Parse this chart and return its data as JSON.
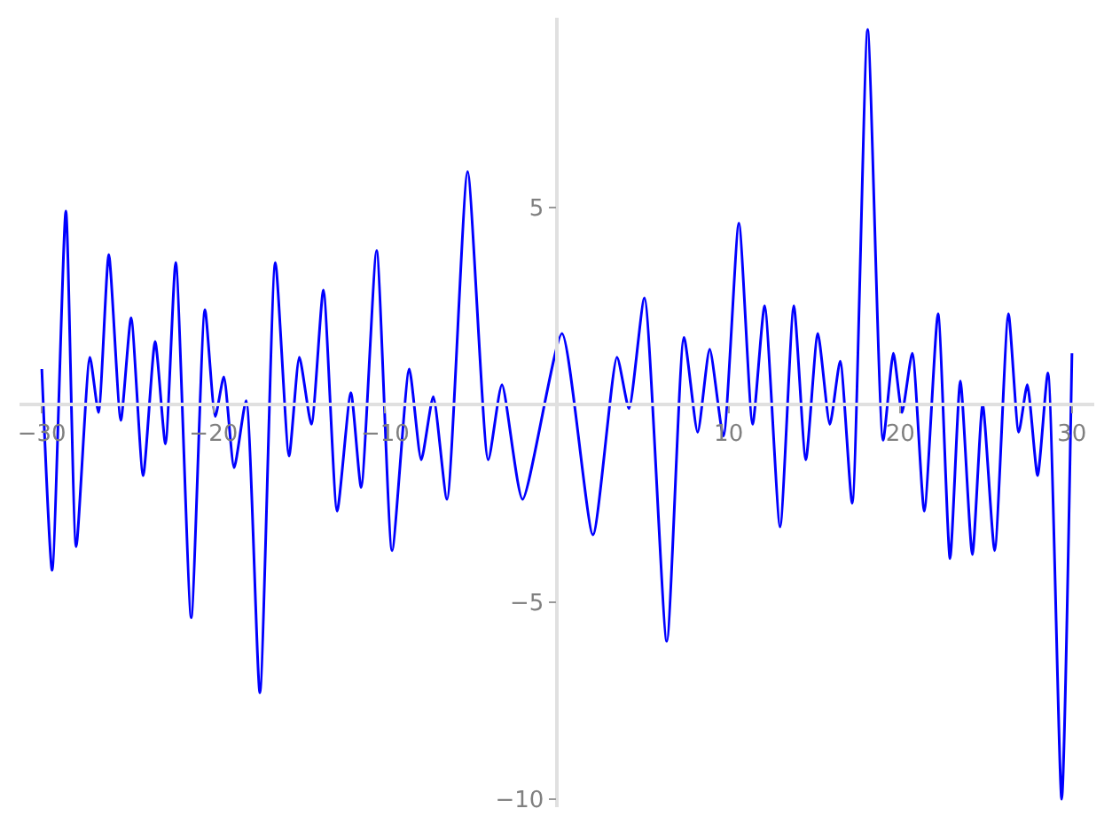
{
  "chart_data": {
    "type": "line",
    "x": [
      -30,
      -29.4,
      -28.6,
      -28.0,
      -27.2,
      -26.7,
      -26.1,
      -25.4,
      -24.8,
      -24.1,
      -23.4,
      -22.8,
      -22.2,
      -21.3,
      -20.5,
      -19.9,
      -19.4,
      -18.8,
      -18.1,
      -17.3,
      -16.4,
      -15.6,
      -15.0,
      -14.3,
      -13.6,
      -12.8,
      -12.0,
      -11.4,
      -10.5,
      -9.6,
      -8.6,
      -7.9,
      -7.2,
      -6.4,
      -5.2,
      -4.0,
      -3.2,
      -2.0,
      0.3,
      2.1,
      3.5,
      4.2,
      5.1,
      6.4,
      7.4,
      8.2,
      8.9,
      9.7,
      10.6,
      11.4,
      12.1,
      13.0,
      13.8,
      14.5,
      15.2,
      15.9,
      16.5,
      17.2,
      18.1,
      19.0,
      19.6,
      20.1,
      20.7,
      21.4,
      22.2,
      22.9,
      23.5,
      24.2,
      24.8,
      25.5,
      26.3,
      26.9,
      27.4,
      28.0,
      28.6,
      29.4,
      30
    ],
    "series": [
      {
        "color": "#0000ff",
        "values": [
          0.9,
          -4.2,
          4.9,
          -3.6,
          1.2,
          -0.2,
          3.8,
          -0.4,
          2.2,
          -1.8,
          1.6,
          -1.0,
          3.6,
          -5.4,
          2.4,
          -0.3,
          0.7,
          -1.6,
          0.1,
          -7.3,
          3.6,
          -1.3,
          1.2,
          -0.5,
          2.9,
          -2.7,
          0.3,
          -2.1,
          3.9,
          -3.7,
          0.9,
          -1.4,
          0.2,
          -2.4,
          5.9,
          -1.4,
          0.5,
          -2.4,
          1.8,
          -3.3,
          1.2,
          -0.1,
          2.7,
          -6.0,
          1.7,
          -0.7,
          1.4,
          -0.8,
          4.6,
          -0.5,
          2.5,
          -3.1,
          2.5,
          -1.4,
          1.8,
          -0.5,
          1.1,
          -2.5,
          9.5,
          -0.9,
          1.3,
          -0.2,
          1.3,
          -2.7,
          2.3,
          -3.9,
          0.6,
          -3.8,
          0.0,
          -3.7,
          2.3,
          -0.7,
          0.5,
          -1.8,
          0.8,
          -10.0,
          1.3
        ]
      }
    ],
    "xlim": [
      -31.3,
      31.3
    ],
    "ylim": [
      -10.2,
      9.8
    ],
    "xticks": [
      -30,
      -20,
      -10,
      10,
      20,
      30
    ],
    "yticks": [
      -10,
      -5,
      5
    ],
    "legend": false,
    "marker": "none",
    "line_style": "solid"
  }
}
